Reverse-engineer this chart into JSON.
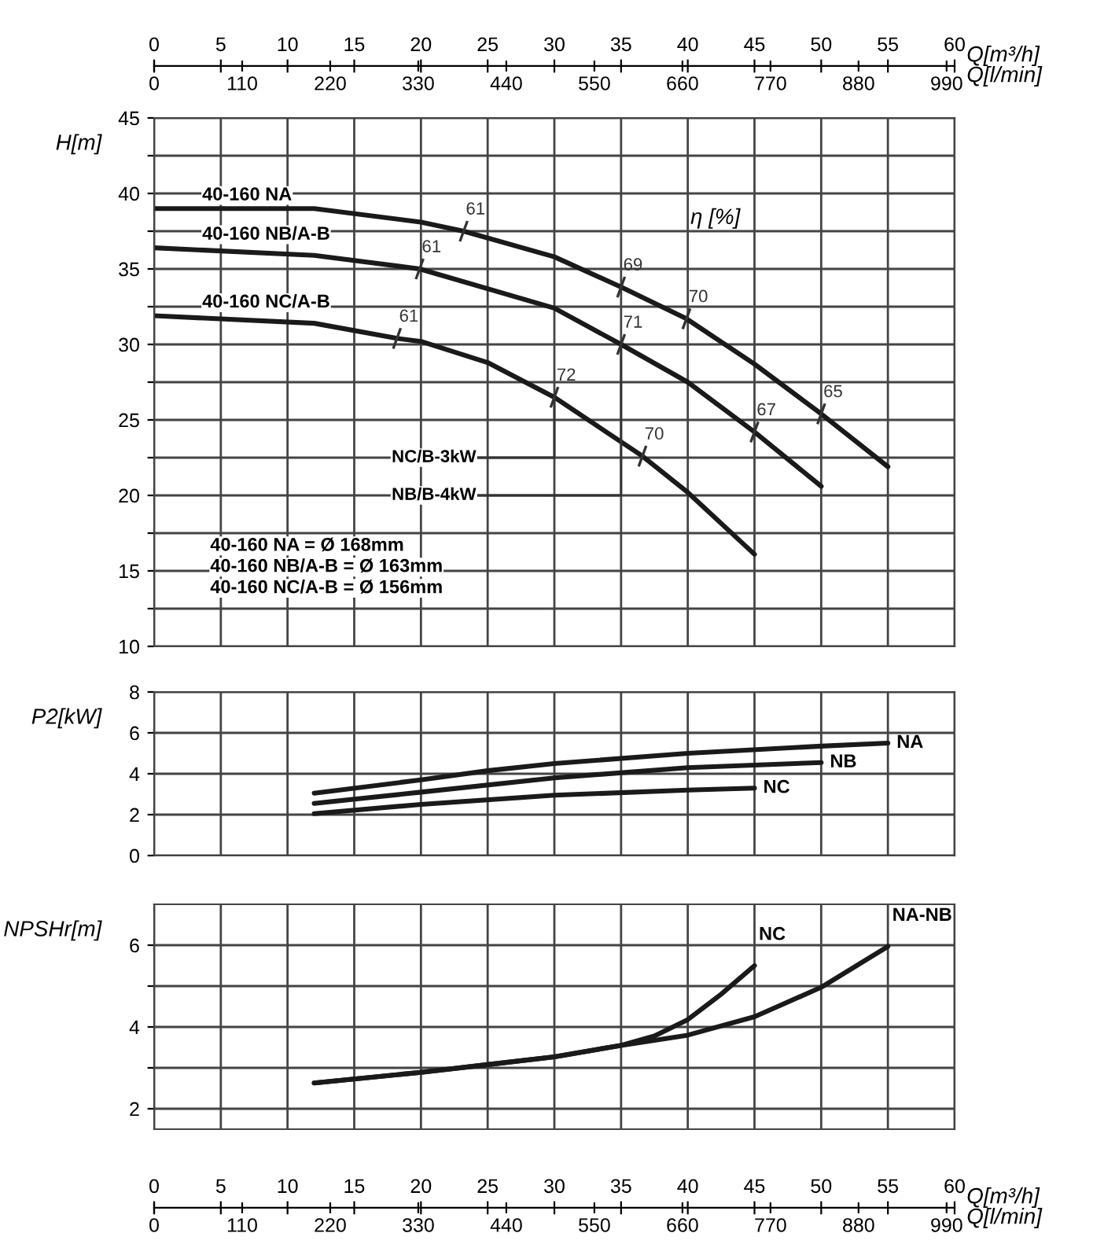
{
  "chart_data": [
    {
      "type": "line",
      "xlabel": "Q[m³/h]",
      "x2label": "Q[l/min]",
      "ylabel": "H[m]",
      "xlim": [
        0,
        60
      ],
      "xticks": [
        0,
        5,
        10,
        15,
        20,
        25,
        30,
        35,
        40,
        45,
        50,
        55,
        60
      ],
      "x2lim": [
        0,
        1000
      ],
      "x2ticks": [
        0,
        110,
        220,
        330,
        440,
        550,
        660,
        770,
        880,
        990
      ],
      "ylim": [
        10,
        45
      ],
      "yticks": [
        10,
        {
          "value": 12.5,
          "label": null
        },
        15,
        {
          "value": 17.5,
          "label": null
        },
        20,
        {
          "value": 22.5,
          "label": null
        },
        25,
        {
          "value": 27.5,
          "label": null
        },
        30,
        {
          "value": 32.5,
          "label": null
        },
        35,
        {
          "value": 37.5,
          "label": null
        },
        40,
        {
          "value": 42.5,
          "label": null
        },
        45
      ],
      "grid": true,
      "legend": false,
      "series": [
        {
          "name": "40-160 NA",
          "color": "#1a1a1a",
          "x": [
            0,
            12,
            20,
            23.2,
            30,
            35,
            39.9,
            45,
            50,
            55
          ],
          "values": [
            39.0,
            39.0,
            38.1,
            37.5,
            35.8,
            33.8,
            31.7,
            28.7,
            25.4,
            21.9
          ]
        },
        {
          "name": "40-160 NB/A-B",
          "color": "#1a1a1a",
          "x": [
            0,
            12,
            19.9,
            30,
            35,
            40,
            45,
            50
          ],
          "values": [
            36.4,
            35.9,
            35.0,
            32.4,
            30.0,
            27.5,
            24.2,
            20.6
          ]
        },
        {
          "name": "40-160 NC/A-B",
          "color": "#1a1a1a",
          "x": [
            0,
            12,
            18.2,
            20,
            25,
            30,
            36.6,
            40,
            45
          ],
          "values": [
            31.9,
            31.4,
            30.4,
            30.2,
            28.8,
            26.5,
            22.6,
            20.2,
            16.1
          ]
        },
        {
          "type": "step",
          "name": "NC/B-3kW",
          "color": "#333333",
          "x": [
            24.3,
            30
          ],
          "values": [
            22.5,
            26.5
          ]
        },
        {
          "type": "step",
          "name": "NB/B-4kW",
          "color": "#333333",
          "x": [
            24.3,
            35
          ],
          "values": [
            20,
            30.0
          ]
        }
      ],
      "annotations": [
        "η [%]",
        {
          "text": "61",
          "x": 23.2,
          "y": 37.5
        },
        {
          "text": "69",
          "x": 35,
          "y": 33.8
        },
        {
          "text": "70",
          "x": 39.9,
          "y": 31.7
        },
        {
          "text": "65",
          "x": 50,
          "y": 25.4
        },
        {
          "text": "61",
          "x": 19.9,
          "y": 35.0
        },
        {
          "text": "71",
          "x": 35,
          "y": 30.0
        },
        {
          "text": "67",
          "x": 45,
          "y": 24.2
        },
        {
          "text": "61",
          "x": 18.2,
          "y": 30.4
        },
        {
          "text": "72",
          "x": 30,
          "y": 26.5
        },
        {
          "text": "70",
          "x": 36.6,
          "y": 22.6
        },
        "40-160 NA = Ø 168mm",
        "40-160 NB/A-B = Ø 163mm",
        "40-160 NC/A-B = Ø 156mm"
      ]
    },
    {
      "type": "line",
      "ylabel": "P2[kW]",
      "xlim": [
        0,
        60
      ],
      "xticks": [
        0,
        5,
        10,
        15,
        20,
        25,
        30,
        35,
        40,
        45,
        50,
        55,
        60
      ],
      "ylim": [
        0,
        8
      ],
      "yticks": [
        0,
        2,
        4,
        6,
        8
      ],
      "grid": true,
      "legend": false,
      "tick_labels": "y",
      "series": [
        {
          "name": "NA",
          "color": "#1a1a1a",
          "x": [
            12,
            20,
            25,
            30,
            40,
            50,
            55
          ],
          "values": [
            3.05,
            3.7,
            4.15,
            4.5,
            5.0,
            5.35,
            5.5
          ]
        },
        {
          "name": "NB",
          "color": "#1a1a1a",
          "x": [
            12,
            20,
            30,
            40,
            50
          ],
          "values": [
            2.55,
            3.1,
            3.8,
            4.3,
            4.55
          ]
        },
        {
          "name": "NC",
          "color": "#1a1a1a",
          "x": [
            12,
            20,
            30,
            40,
            45
          ],
          "values": [
            2.05,
            2.5,
            2.95,
            3.2,
            3.3
          ]
        }
      ]
    },
    {
      "type": "line",
      "ylabel": "NPSHr[m]",
      "xlabel": "Q[m³/h]",
      "x2label": "Q[l/min]",
      "xlim": [
        0,
        60
      ],
      "xticks": [
        0,
        5,
        10,
        15,
        20,
        25,
        30,
        35,
        40,
        45,
        50,
        55,
        60
      ],
      "x2lim": [
        0,
        1000
      ],
      "x2ticks": [
        0,
        110,
        220,
        330,
        440,
        550,
        660,
        770,
        880,
        990
      ],
      "ylim": [
        1.5,
        7
      ],
      "yticks": [
        2,
        {
          "value": 3,
          "label": null
        },
        4,
        {
          "value": 5,
          "label": null
        },
        6
      ],
      "grid": true,
      "legend": false,
      "series": [
        {
          "name": "NC",
          "color": "#1a1a1a",
          "x": [
            12,
            20,
            25,
            30,
            35,
            37.5,
            40,
            42.5,
            45
          ],
          "values": [
            2.63,
            2.89,
            3.08,
            3.27,
            3.55,
            3.78,
            4.18,
            4.8,
            5.5
          ]
        },
        {
          "name": "NA-NB",
          "color": "#1a1a1a",
          "x": [
            12,
            20,
            25,
            30,
            35,
            40,
            45,
            50,
            55
          ],
          "values": [
            2.63,
            2.89,
            3.08,
            3.27,
            3.55,
            3.8,
            4.25,
            4.97,
            5.97
          ]
        }
      ]
    }
  ]
}
